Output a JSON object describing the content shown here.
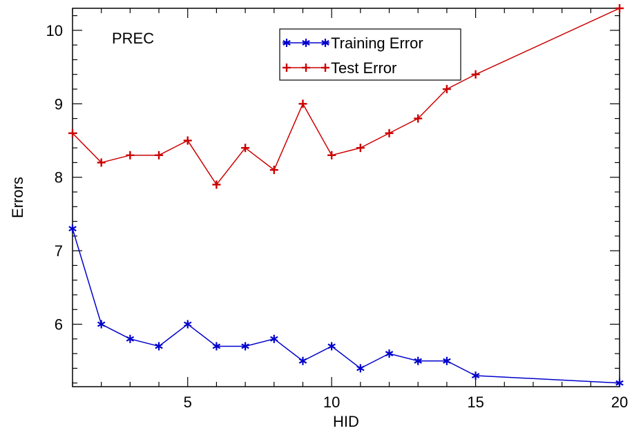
{
  "chart_data": {
    "type": "line",
    "title": "",
    "annotation": "PREC",
    "xlabel": "HID",
    "ylabel": "Errors",
    "xlim": [
      1,
      20
    ],
    "ylim": [
      5.15,
      10.3
    ],
    "xticks": [
      5,
      10,
      15,
      20
    ],
    "yticks": [
      6,
      7,
      8,
      9,
      10
    ],
    "grid": false,
    "legend_position": "top-center",
    "series": [
      {
        "name": "Training Error",
        "color": "#0000cc",
        "marker": "star",
        "x": [
          1,
          2,
          3,
          4,
          5,
          6,
          7,
          8,
          9,
          10,
          11,
          12,
          13,
          14,
          15,
          20
        ],
        "y": [
          7.3,
          6.0,
          5.8,
          5.7,
          6.0,
          5.7,
          5.7,
          5.8,
          5.5,
          5.7,
          5.4,
          5.6,
          5.5,
          5.5,
          5.3,
          5.2
        ]
      },
      {
        "name": "Test Error",
        "color": "#cc0000",
        "marker": "plus",
        "x": [
          1,
          2,
          3,
          4,
          5,
          6,
          7,
          8,
          9,
          10,
          11,
          12,
          13,
          14,
          15,
          20
        ],
        "y": [
          8.6,
          8.2,
          8.3,
          8.3,
          8.5,
          7.9,
          8.4,
          8.1,
          9.0,
          8.3,
          8.4,
          8.6,
          8.8,
          9.2,
          9.4,
          10.3
        ]
      }
    ]
  }
}
